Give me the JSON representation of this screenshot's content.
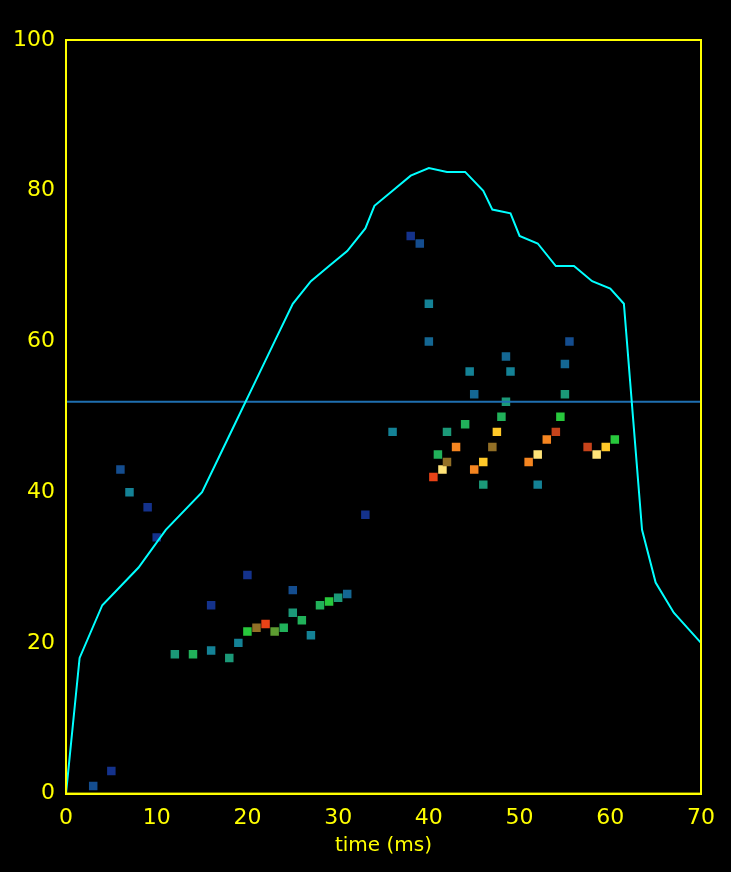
{
  "chart_data": {
    "type": "line",
    "x_label": "time (ms)",
    "xlim": [
      0,
      70
    ],
    "xticks": [
      0,
      10,
      20,
      30,
      40,
      50,
      60,
      70
    ],
    "ylim": [
      0,
      100
    ],
    "yticks": [
      0,
      20,
      40,
      60,
      80,
      100
    ],
    "grid": false,
    "series": [
      {
        "color": "#00ffff",
        "x": [
          0,
          1.5,
          4,
          8,
          11,
          15,
          17,
          19,
          21,
          23,
          25,
          27,
          29,
          31,
          33,
          34,
          36,
          38,
          40,
          42,
          44,
          46,
          47,
          49,
          50,
          52,
          54,
          56,
          58,
          60,
          61.5,
          62.5,
          63.5,
          65,
          67,
          70
        ],
        "values": [
          0,
          18,
          25,
          30,
          35,
          40,
          45,
          50,
          55,
          60,
          65,
          68,
          70,
          72,
          75,
          78,
          80,
          82,
          83,
          82.5,
          82.5,
          80,
          77.5,
          77,
          74,
          73,
          70,
          70,
          68,
          67,
          65,
          50,
          35,
          28,
          24,
          20
        ]
      },
      {
        "color": "#1f6fb0",
        "x": [
          0,
          70
        ],
        "values": [
          52,
          52
        ]
      }
    ],
    "spectrogram": {
      "value_range": [
        0,
        1
      ],
      "cells": [
        [
          40.5,
          42,
          0.8
        ],
        [
          41.5,
          43,
          0.95
        ],
        [
          42,
          44,
          0.7
        ],
        [
          43,
          46,
          0.85
        ],
        [
          42,
          48,
          0.5
        ],
        [
          41,
          45,
          0.55
        ],
        [
          44,
          49,
          0.55
        ],
        [
          45,
          43,
          0.85
        ],
        [
          46,
          44,
          0.9
        ],
        [
          47,
          46,
          0.7
        ],
        [
          47.5,
          48,
          0.9
        ],
        [
          48,
          50,
          0.55
        ],
        [
          48.5,
          52,
          0.5
        ],
        [
          49,
          56,
          0.45
        ],
        [
          48.5,
          58,
          0.4
        ],
        [
          44.5,
          56,
          0.45
        ],
        [
          45,
          53,
          0.4
        ],
        [
          51,
          44,
          0.85
        ],
        [
          52,
          45,
          0.95
        ],
        [
          53,
          47,
          0.85
        ],
        [
          54,
          48,
          0.75
        ],
        [
          54.5,
          50,
          0.6
        ],
        [
          55,
          53,
          0.5
        ],
        [
          55,
          57,
          0.4
        ],
        [
          55.5,
          60,
          0.35
        ],
        [
          57.5,
          46,
          0.75
        ],
        [
          58.5,
          45,
          0.95
        ],
        [
          59.5,
          46,
          0.9
        ],
        [
          60.5,
          47,
          0.6
        ],
        [
          52,
          41,
          0.45
        ],
        [
          46,
          41,
          0.5
        ],
        [
          40,
          60,
          0.4
        ],
        [
          40,
          65,
          0.45
        ],
        [
          36,
          48,
          0.45
        ],
        [
          38,
          74,
          0.3
        ],
        [
          39,
          73,
          0.35
        ],
        [
          12,
          18.5,
          0.5
        ],
        [
          14,
          18.5,
          0.55
        ],
        [
          16,
          19,
          0.45
        ],
        [
          18,
          18,
          0.5
        ],
        [
          19,
          20,
          0.45
        ],
        [
          20,
          21.5,
          0.6
        ],
        [
          21,
          22,
          0.7
        ],
        [
          22,
          22.5,
          0.8
        ],
        [
          23,
          21.5,
          0.65
        ],
        [
          24,
          22,
          0.55
        ],
        [
          25,
          24,
          0.5
        ],
        [
          26,
          23,
          0.55
        ],
        [
          27,
          21,
          0.45
        ],
        [
          28,
          25,
          0.55
        ],
        [
          29,
          25.5,
          0.6
        ],
        [
          30,
          26,
          0.5
        ],
        [
          31,
          26.5,
          0.4
        ],
        [
          25,
          27,
          0.35
        ],
        [
          7,
          40,
          0.45
        ],
        [
          6,
          43,
          0.35
        ],
        [
          9,
          38,
          0.3
        ],
        [
          3,
          1,
          0.35
        ],
        [
          5,
          3,
          0.3
        ],
        [
          16,
          25,
          0.3
        ],
        [
          20,
          29,
          0.3
        ],
        [
          33,
          37,
          0.3
        ],
        [
          10,
          34,
          0.3
        ]
      ]
    }
  }
}
